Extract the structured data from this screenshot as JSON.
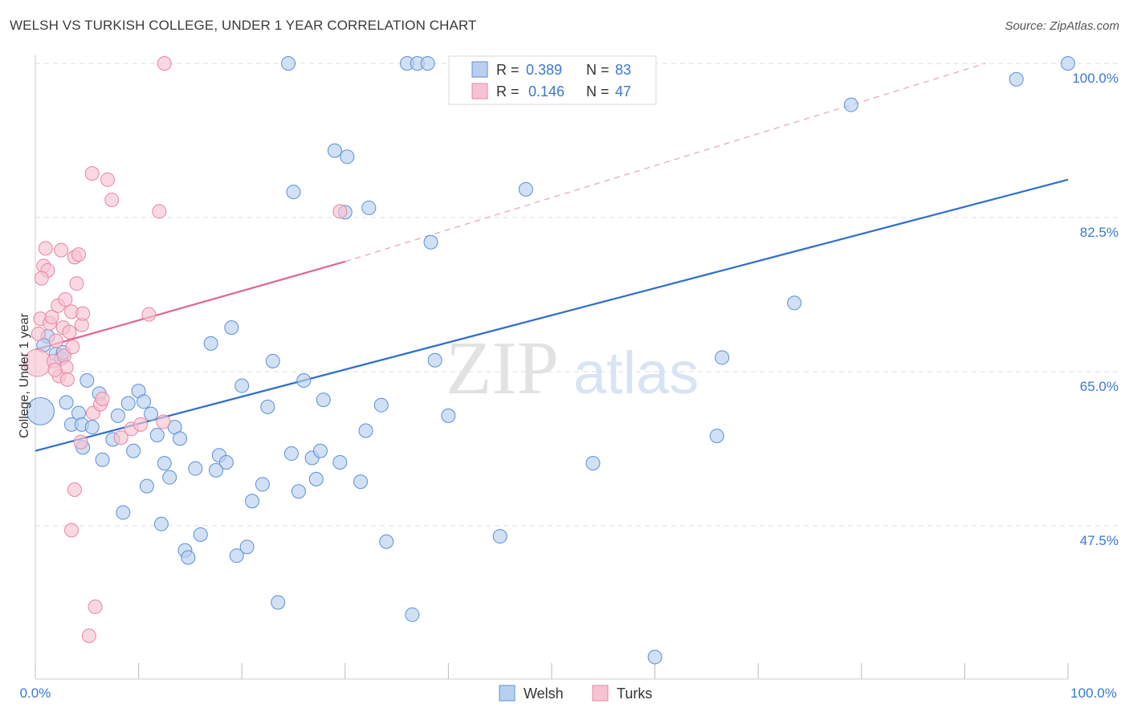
{
  "title": "WELSH VS TURKISH COLLEGE, UNDER 1 YEAR CORRELATION CHART",
  "source": "Source: ZipAtlas.com",
  "watermark": {
    "zip": "ZIP",
    "atlas": "atlas"
  },
  "colors": {
    "welsh_fill": "#b8d0f0",
    "welsh_stroke": "#5b8fd6",
    "welsh_line": "#2f6fcc",
    "turks_fill": "#f7c3d3",
    "turks_stroke": "#e8859f",
    "turks_line": "#e0668f",
    "axis_label": "#3a78d0",
    "grid": "#dddddd"
  },
  "legend": {
    "rows": [
      {
        "r_label": "R = ",
        "r_value": "0.389",
        "n_label": "N = ",
        "n_value": "83"
      },
      {
        "r_label": "R = ",
        "r_value": "0.146",
        "n_label": "N = ",
        "n_value": "47"
      }
    ]
  },
  "chart_data": {
    "type": "scatter",
    "title": "WELSH VS TURKISH COLLEGE, UNDER 1 YEAR CORRELATION CHART",
    "xlabel": "",
    "ylabel": "College, Under 1 year",
    "xlim": [
      0,
      100
    ],
    "ylim": [
      32,
      102
    ],
    "x_tick_labels": [
      "0.0%",
      "100.0%"
    ],
    "y_ticks": [
      47.5,
      65.0,
      82.5,
      100.0
    ],
    "y_tick_labels": [
      "47.5%",
      "65.0%",
      "82.5%",
      "100.0%"
    ],
    "series": [
      {
        "name": "Welsh",
        "r": 0.389,
        "n": 83,
        "trend": {
          "x": [
            0,
            100
          ],
          "y": [
            56.0,
            86.8
          ]
        },
        "points": [
          {
            "x": 0.5,
            "y": 60.5,
            "big": true
          },
          {
            "x": 1.2,
            "y": 69.0
          },
          {
            "x": 2.0,
            "y": 67.0
          },
          {
            "x": 2.5,
            "y": 66.5
          },
          {
            "x": 3.0,
            "y": 61.5
          },
          {
            "x": 3.5,
            "y": 59.0
          },
          {
            "x": 4.2,
            "y": 60.3
          },
          {
            "x": 4.5,
            "y": 59.0
          },
          {
            "x": 5.0,
            "y": 64.0
          },
          {
            "x": 5.5,
            "y": 58.7
          },
          {
            "x": 6.2,
            "y": 62.5
          },
          {
            "x": 6.5,
            "y": 55.0
          },
          {
            "x": 7.5,
            "y": 57.3
          },
          {
            "x": 8.0,
            "y": 60.0
          },
          {
            "x": 8.5,
            "y": 49.0
          },
          {
            "x": 9.0,
            "y": 61.4
          },
          {
            "x": 9.5,
            "y": 56.0
          },
          {
            "x": 10.0,
            "y": 62.8
          },
          {
            "x": 10.5,
            "y": 61.6
          },
          {
            "x": 10.8,
            "y": 52.0
          },
          {
            "x": 11.2,
            "y": 60.2
          },
          {
            "x": 11.8,
            "y": 57.8
          },
          {
            "x": 12.2,
            "y": 47.7
          },
          {
            "x": 12.5,
            "y": 54.6
          },
          {
            "x": 13.0,
            "y": 53.0
          },
          {
            "x": 13.5,
            "y": 58.7
          },
          {
            "x": 14.0,
            "y": 57.4
          },
          {
            "x": 14.5,
            "y": 44.7
          },
          {
            "x": 14.8,
            "y": 43.9
          },
          {
            "x": 15.5,
            "y": 54.0
          },
          {
            "x": 16.0,
            "y": 46.5
          },
          {
            "x": 17.0,
            "y": 68.2
          },
          {
            "x": 17.5,
            "y": 53.8
          },
          {
            "x": 17.8,
            "y": 55.5
          },
          {
            "x": 18.5,
            "y": 54.7
          },
          {
            "x": 19.0,
            "y": 70.0
          },
          {
            "x": 19.5,
            "y": 44.1
          },
          {
            "x": 20.0,
            "y": 63.4
          },
          {
            "x": 20.5,
            "y": 45.1
          },
          {
            "x": 21.0,
            "y": 50.3
          },
          {
            "x": 22.0,
            "y": 52.2
          },
          {
            "x": 22.5,
            "y": 61.0
          },
          {
            "x": 23.0,
            "y": 66.2
          },
          {
            "x": 23.5,
            "y": 38.8
          },
          {
            "x": 24.5,
            "y": 100.0
          },
          {
            "x": 24.8,
            "y": 55.7
          },
          {
            "x": 25.0,
            "y": 85.4
          },
          {
            "x": 25.5,
            "y": 51.4
          },
          {
            "x": 26.0,
            "y": 64.0
          },
          {
            "x": 26.8,
            "y": 55.2
          },
          {
            "x": 27.2,
            "y": 52.8
          },
          {
            "x": 27.6,
            "y": 56.0
          },
          {
            "x": 27.9,
            "y": 61.8
          },
          {
            "x": 29.0,
            "y": 90.1
          },
          {
            "x": 29.5,
            "y": 54.7
          },
          {
            "x": 30.0,
            "y": 83.1
          },
          {
            "x": 30.2,
            "y": 89.4
          },
          {
            "x": 31.5,
            "y": 52.5
          },
          {
            "x": 32.0,
            "y": 58.3
          },
          {
            "x": 32.3,
            "y": 83.6
          },
          {
            "x": 33.5,
            "y": 61.2
          },
          {
            "x": 34.0,
            "y": 45.7
          },
          {
            "x": 36.0,
            "y": 100.0
          },
          {
            "x": 36.5,
            "y": 37.4
          },
          {
            "x": 37.0,
            "y": 100.0
          },
          {
            "x": 38.0,
            "y": 100.0
          },
          {
            "x": 38.3,
            "y": 79.7
          },
          {
            "x": 38.7,
            "y": 66.3
          },
          {
            "x": 40.0,
            "y": 60.0
          },
          {
            "x": 41.0,
            "y": 100.0
          },
          {
            "x": 45.0,
            "y": 46.3
          },
          {
            "x": 47.5,
            "y": 85.7
          },
          {
            "x": 54.0,
            "y": 54.6
          },
          {
            "x": 60.0,
            "y": 32.6
          },
          {
            "x": 66.0,
            "y": 57.7
          },
          {
            "x": 66.5,
            "y": 66.6
          },
          {
            "x": 73.5,
            "y": 72.8
          },
          {
            "x": 79.0,
            "y": 95.3
          },
          {
            "x": 95.0,
            "y": 98.2
          },
          {
            "x": 100.0,
            "y": 100.0
          },
          {
            "x": 0.8,
            "y": 68.0
          },
          {
            "x": 2.7,
            "y": 67.2
          },
          {
            "x": 4.6,
            "y": 56.4
          }
        ]
      },
      {
        "name": "Turks",
        "r": 0.146,
        "n": 47,
        "trend": {
          "x": [
            0,
            30
          ],
          "y": [
            67.5,
            77.5
          ]
        },
        "trend_extension": {
          "x": [
            30,
            92
          ],
          "y": [
            77.5,
            100.0
          ]
        },
        "points": [
          {
            "x": 0.2,
            "y": 66.0,
            "big": true
          },
          {
            "x": 0.5,
            "y": 71.0
          },
          {
            "x": 0.8,
            "y": 77.0
          },
          {
            "x": 1.0,
            "y": 79.0
          },
          {
            "x": 1.2,
            "y": 76.5
          },
          {
            "x": 1.4,
            "y": 70.5
          },
          {
            "x": 1.6,
            "y": 71.2
          },
          {
            "x": 1.8,
            "y": 66.2
          },
          {
            "x": 2.0,
            "y": 68.5
          },
          {
            "x": 2.2,
            "y": 72.5
          },
          {
            "x": 2.3,
            "y": 64.5
          },
          {
            "x": 2.5,
            "y": 78.8
          },
          {
            "x": 2.7,
            "y": 70.0
          },
          {
            "x": 2.8,
            "y": 66.8
          },
          {
            "x": 3.0,
            "y": 65.5
          },
          {
            "x": 3.1,
            "y": 64.1
          },
          {
            "x": 3.3,
            "y": 69.5
          },
          {
            "x": 3.5,
            "y": 71.8
          },
          {
            "x": 3.6,
            "y": 67.8
          },
          {
            "x": 3.8,
            "y": 78.0
          },
          {
            "x": 3.5,
            "y": 47.0
          },
          {
            "x": 3.8,
            "y": 51.6
          },
          {
            "x": 4.0,
            "y": 75.0
          },
          {
            "x": 4.2,
            "y": 78.3
          },
          {
            "x": 4.4,
            "y": 57.0
          },
          {
            "x": 4.5,
            "y": 70.3
          },
          {
            "x": 4.6,
            "y": 71.6
          },
          {
            "x": 5.2,
            "y": 35.0
          },
          {
            "x": 5.5,
            "y": 87.5
          },
          {
            "x": 5.6,
            "y": 60.3
          },
          {
            "x": 5.8,
            "y": 38.3
          },
          {
            "x": 6.3,
            "y": 61.3
          },
          {
            "x": 6.5,
            "y": 61.9
          },
          {
            "x": 7.0,
            "y": 86.8
          },
          {
            "x": 7.4,
            "y": 84.5
          },
          {
            "x": 8.3,
            "y": 57.5
          },
          {
            "x": 9.3,
            "y": 58.5
          },
          {
            "x": 10.2,
            "y": 59.0
          },
          {
            "x": 11.0,
            "y": 71.5
          },
          {
            "x": 12.0,
            "y": 83.2
          },
          {
            "x": 12.4,
            "y": 59.3
          },
          {
            "x": 12.5,
            "y": 100.0
          },
          {
            "x": 29.5,
            "y": 83.2
          },
          {
            "x": 0.3,
            "y": 69.3
          },
          {
            "x": 0.6,
            "y": 75.6
          },
          {
            "x": 1.9,
            "y": 65.2
          },
          {
            "x": 2.9,
            "y": 73.2
          }
        ]
      }
    ]
  }
}
